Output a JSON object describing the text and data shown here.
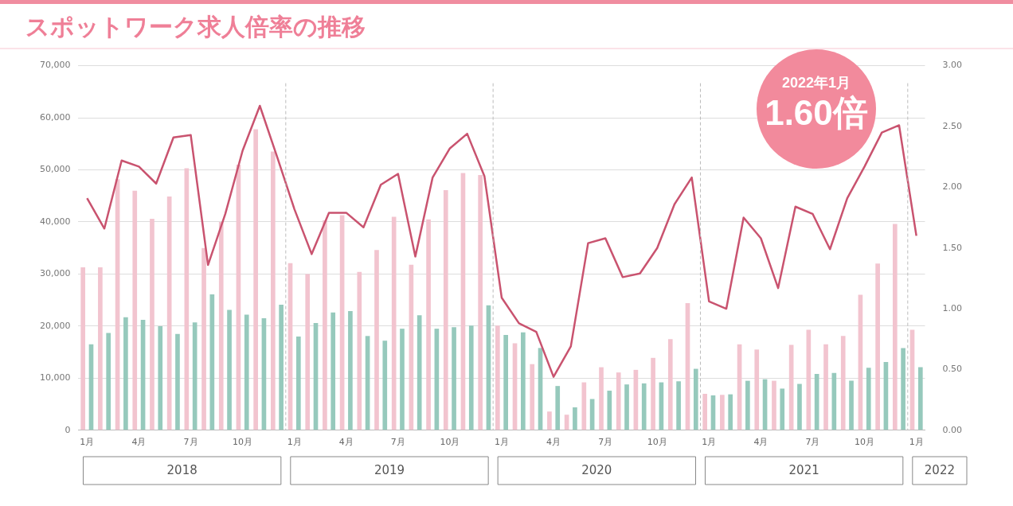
{
  "chart_data": {
    "type": "bar",
    "title": "スポットワーク求人倍率の推移",
    "categories": [
      "1月",
      null,
      null,
      "4月",
      null,
      null,
      "7月",
      null,
      null,
      "10月",
      null,
      null,
      "1月",
      null,
      null,
      "4月",
      null,
      null,
      "7月",
      null,
      null,
      "10月",
      null,
      null,
      "1月",
      null,
      null,
      "4月",
      null,
      null,
      "7月",
      null,
      null,
      "10月",
      null,
      null,
      "1月",
      null,
      null,
      "4月",
      null,
      null,
      "7月",
      null,
      null,
      "10月",
      null,
      null,
      "1月"
    ],
    "series": [
      {
        "color": "#f2c4cf",
        "values": [
          31300,
          31300,
          48200,
          46000,
          40600,
          44900,
          50300,
          35000,
          40000,
          51000,
          57800,
          53500,
          32100,
          30000,
          40300,
          41300,
          30400,
          34600,
          41000,
          31800,
          40500,
          46100,
          49400,
          49000,
          20100,
          16700,
          12700,
          3600,
          3000,
          9200,
          12100,
          11100,
          11600,
          13900,
          17500,
          24400,
          7000,
          6800,
          16500,
          15500,
          9500,
          16400,
          19300,
          16500,
          18100,
          26000,
          32000,
          39600,
          19300
        ]
      },
      {
        "color": "#96c9bc",
        "values": [
          16500,
          18700,
          21700,
          21200,
          20000,
          18500,
          20700,
          26100,
          23100,
          22200,
          21500,
          24100,
          18000,
          20600,
          22600,
          22900,
          18100,
          17200,
          19500,
          22100,
          19500,
          19800,
          20100,
          24000,
          18300,
          18800,
          15800,
          8500,
          4400,
          6000,
          7600,
          8800,
          9000,
          9200,
          9400,
          11800,
          6700,
          6900,
          9500,
          9800,
          8000,
          8900,
          10800,
          11000,
          9500,
          12000,
          13100,
          15800,
          12100
        ]
      },
      {
        "type": "line",
        "axis": "y2",
        "color": "#c9536f",
        "values": [
          1.91,
          1.66,
          2.22,
          2.17,
          2.03,
          2.41,
          2.43,
          1.36,
          1.78,
          2.3,
          2.67,
          2.25,
          1.82,
          1.45,
          1.79,
          1.79,
          1.67,
          2.02,
          2.11,
          1.43,
          2.08,
          2.32,
          2.44,
          2.09,
          1.09,
          0.88,
          0.81,
          0.44,
          0.69,
          1.54,
          1.58,
          1.26,
          1.29,
          1.5,
          1.86,
          2.08,
          1.06,
          1.0,
          1.75,
          1.58,
          1.17,
          1.84,
          1.78,
          1.49,
          1.91,
          2.17,
          2.45,
          2.51,
          1.6
        ]
      }
    ],
    "ylim": [
      0,
      70000
    ],
    "yticks": [
      {
        "value": 0,
        "label": "0"
      },
      {
        "value": 10000,
        "label": "10,000"
      },
      {
        "value": 20000,
        "label": "20,000"
      },
      {
        "value": 30000,
        "label": "30,000"
      },
      {
        "value": 40000,
        "label": "40,000"
      },
      {
        "value": 50000,
        "label": "50,000"
      },
      {
        "value": 60000,
        "label": "60,000"
      },
      {
        "value": 70000,
        "label": "70,000"
      }
    ],
    "y2lim": [
      0,
      3
    ],
    "y2ticks": [
      {
        "value": 0,
        "label": "0.00"
      },
      {
        "value": 0.5,
        "label": "0.50"
      },
      {
        "value": 1,
        "label": "1.00"
      },
      {
        "value": 1.5,
        "label": "1.50"
      },
      {
        "value": 2,
        "label": "2.00"
      },
      {
        "value": 2.5,
        "label": "2.50"
      },
      {
        "value": 3,
        "label": "3.00"
      }
    ],
    "grid": "y",
    "legend": false,
    "marker": "none",
    "annotations": [
      "2022年1月",
      "1.60倍",
      "2018",
      "2019",
      "2020",
      "2021",
      "2022"
    ]
  }
}
